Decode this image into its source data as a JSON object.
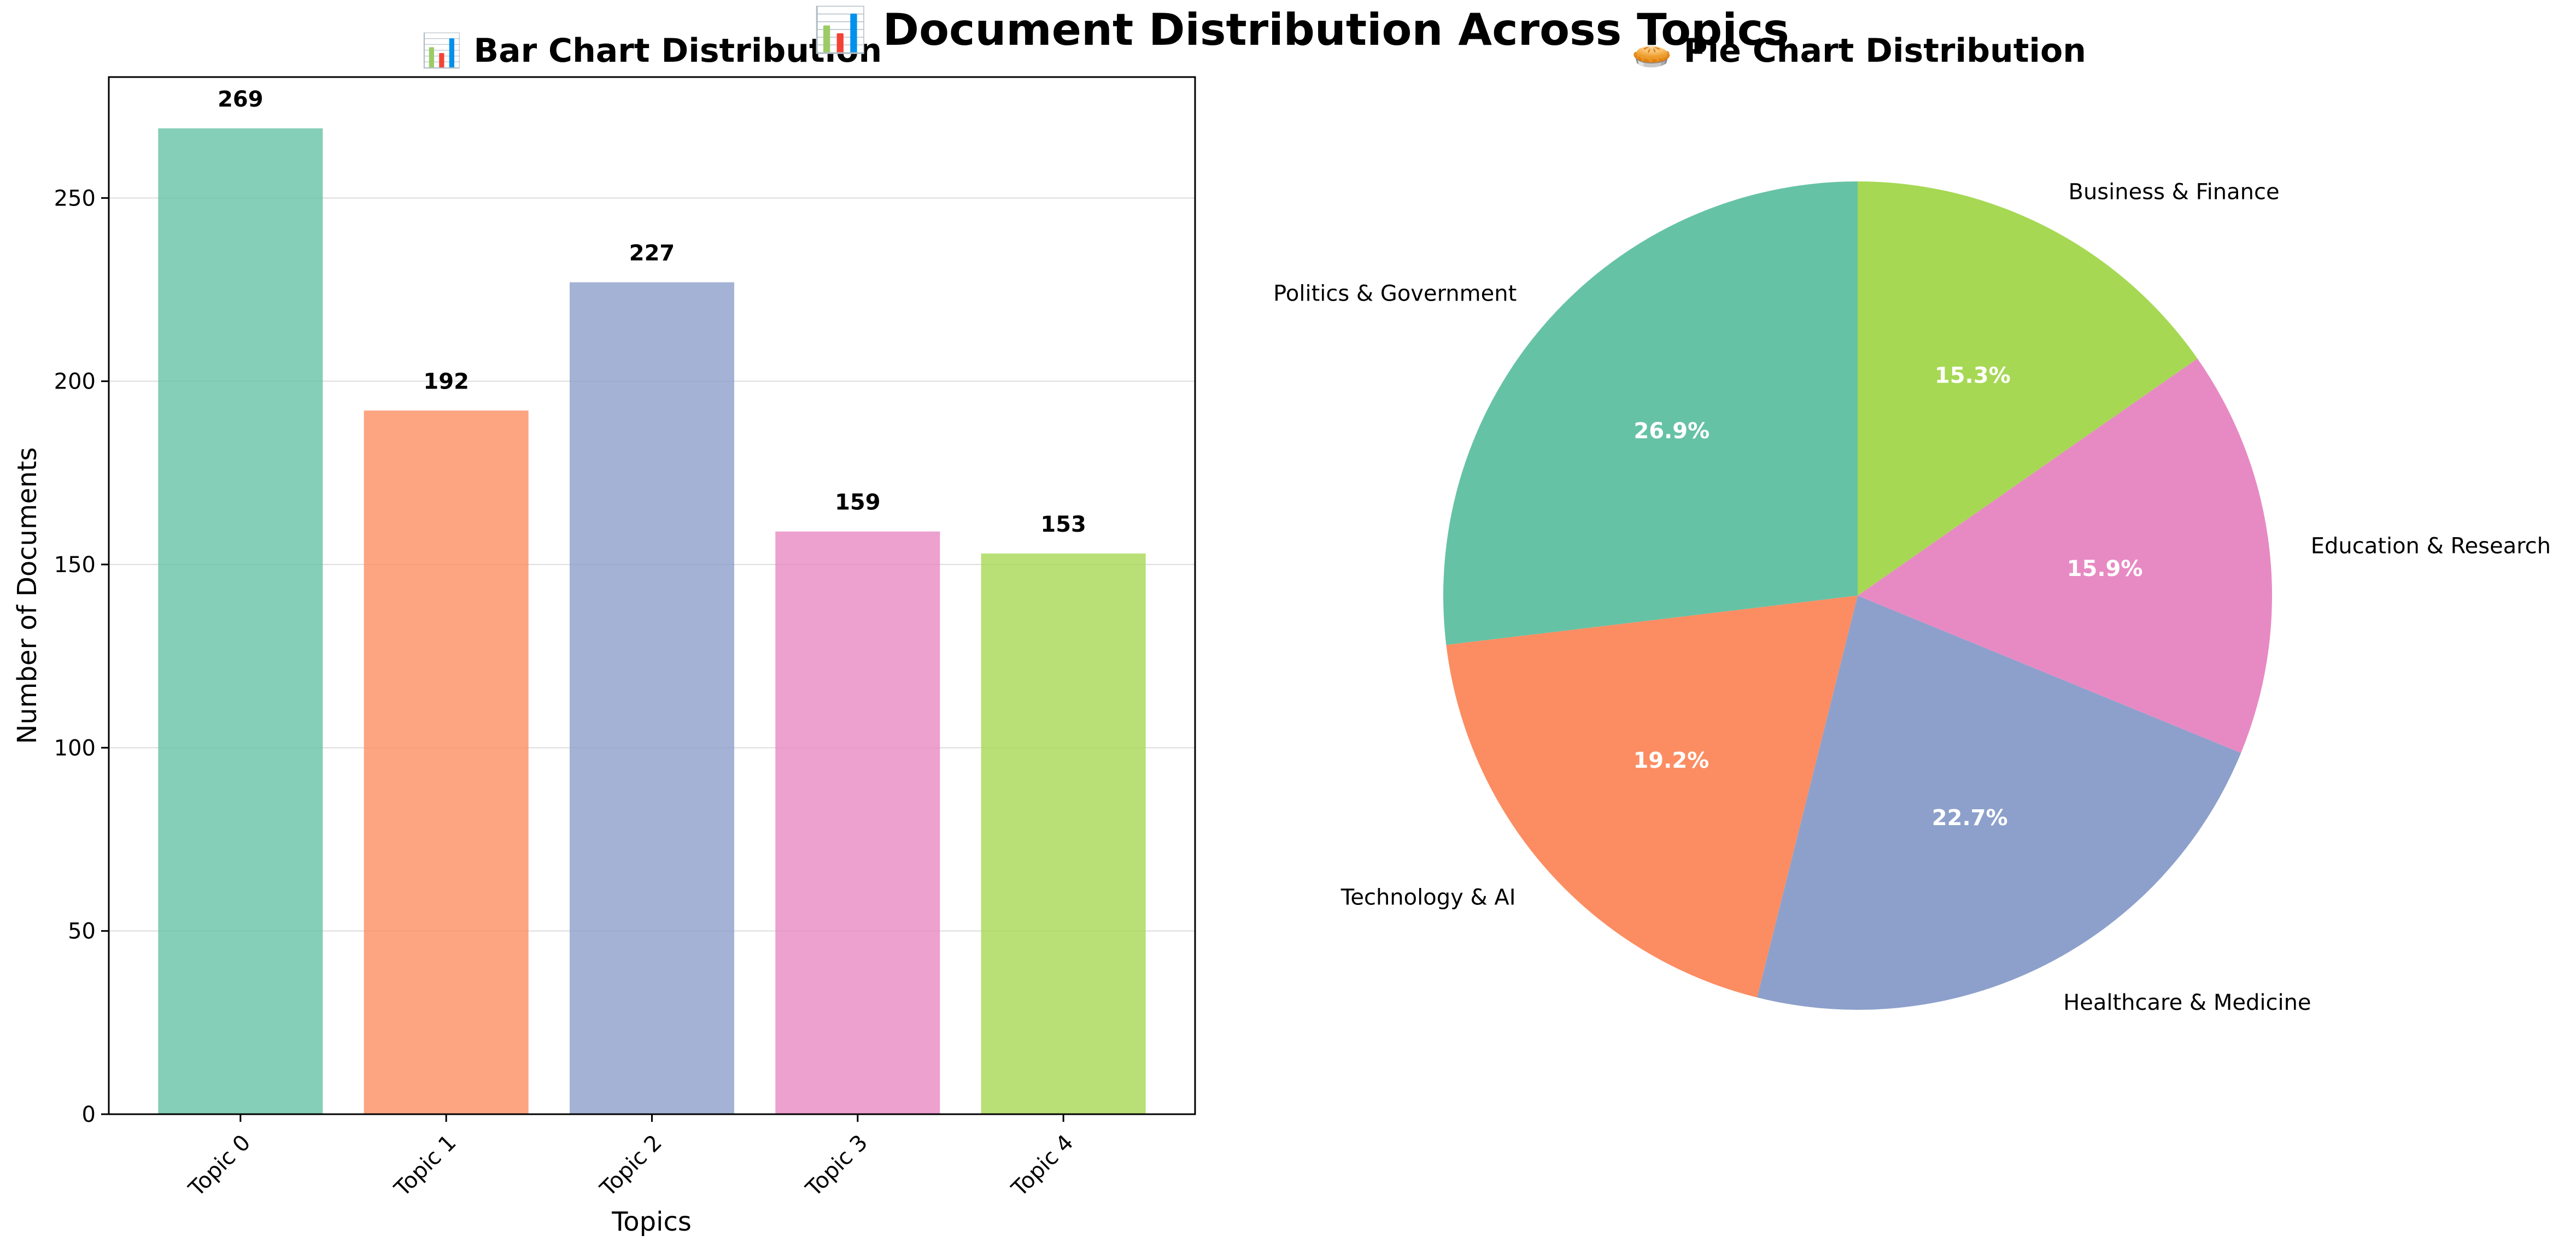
{
  "figure": {
    "title": "📊 Document Distribution Across Topics"
  },
  "chart_data": [
    {
      "type": "bar",
      "title": "📊 Bar Chart Distribution",
      "xlabel": "Topics",
      "ylabel": "Number of Documents",
      "categories": [
        "Topic 0",
        "Topic 1",
        "Topic 2",
        "Topic 3",
        "Topic 4"
      ],
      "values": [
        269,
        192,
        227,
        159,
        153
      ],
      "ylim": [
        0,
        283
      ],
      "yticks": [
        0,
        50,
        100,
        150,
        200,
        250
      ],
      "grid": "y",
      "colors": [
        "#66c2a5",
        "#fc8d62",
        "#8da0cb",
        "#e78ac3",
        "#a6d854"
      ],
      "bar_alpha": 0.8
    },
    {
      "type": "pie",
      "title": "🥧 Pie Chart Distribution",
      "labels": [
        "Politics & Government",
        "Technology & AI",
        "Healthcare & Medicine",
        "Education & Research",
        "Business & Finance"
      ],
      "values": [
        269,
        192,
        227,
        159,
        153
      ],
      "percent_labels": [
        "26.9%",
        "19.2%",
        "22.7%",
        "15.9%",
        "15.3%"
      ],
      "colors": [
        "#66c2a5",
        "#fc8d62",
        "#8da0cb",
        "#e78ac3",
        "#a6d854"
      ],
      "start_angle_deg": 90,
      "direction": "counterclockwise"
    }
  ]
}
